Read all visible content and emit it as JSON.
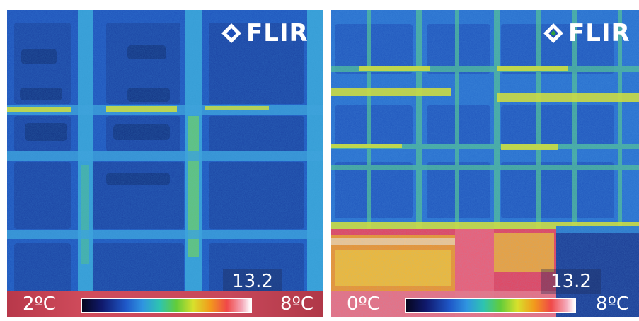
{
  "panels": [
    {
      "logo": "FLIR",
      "readout": "13.2",
      "scale_min": "2ºC",
      "scale_max": "8ºC"
    },
    {
      "logo": "FLIR",
      "readout": "13.2",
      "scale_min": "0ºC",
      "scale_max": "8ºC"
    }
  ],
  "colors": {
    "cold": "#1f4fb0",
    "mid": "#2f95e0",
    "seam": "#d8e02c",
    "hot": "#f04868"
  }
}
